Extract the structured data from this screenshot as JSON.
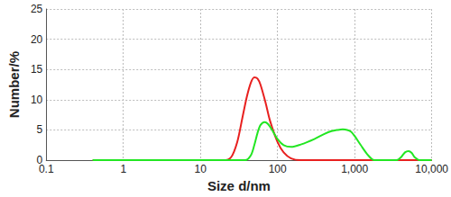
{
  "chart_data": {
    "type": "line",
    "log": "x",
    "grid": true,
    "x_label": "Size d/nm",
    "y_label": "Number/%",
    "xlim": [
      0.1,
      10000
    ],
    "xticks": [
      0.1,
      1,
      10,
      100,
      {
        "value": 1000,
        "label": "1,000"
      },
      {
        "value": 10000,
        "label": "10,000"
      }
    ],
    "ylim": [
      0,
      25
    ],
    "yticks": [
      0,
      5,
      10,
      15,
      20,
      25
    ],
    "series": [
      {
        "color": "#e8201f",
        "x": [
          0.4,
          1,
          10,
          20,
          25,
          30,
          35,
          40,
          45,
          50,
          55,
          60,
          70,
          80,
          100,
          120,
          150,
          200,
          300,
          1000,
          10000
        ],
        "values": [
          0,
          0,
          0,
          0,
          0.5,
          3,
          7,
          10.5,
          12.8,
          13.7,
          13.5,
          12.5,
          9.5,
          6.5,
          3,
          1.3,
          0.3,
          0,
          0,
          0,
          0
        ]
      },
      {
        "color": "#22e622",
        "x": [
          0.4,
          1,
          10,
          30,
          38,
          45,
          50,
          55,
          60,
          68,
          75,
          85,
          100,
          120,
          150,
          200,
          300,
          400,
          500,
          600,
          700,
          800,
          900,
          1000,
          1200,
          1500,
          1800,
          2500,
          3500,
          4000,
          4500,
          5000,
          5500,
          6000,
          7000,
          10000
        ],
        "values": [
          0,
          0,
          0,
          0,
          0,
          0.8,
          2.5,
          4.5,
          5.8,
          6.3,
          6,
          5,
          3.5,
          2.5,
          2.2,
          2.6,
          3.5,
          4.3,
          4.8,
          5,
          5.1,
          5,
          4.7,
          4,
          2.5,
          0.8,
          0,
          0,
          0,
          0.5,
          1.3,
          1.5,
          1.2,
          0.5,
          0,
          0
        ]
      }
    ]
  }
}
